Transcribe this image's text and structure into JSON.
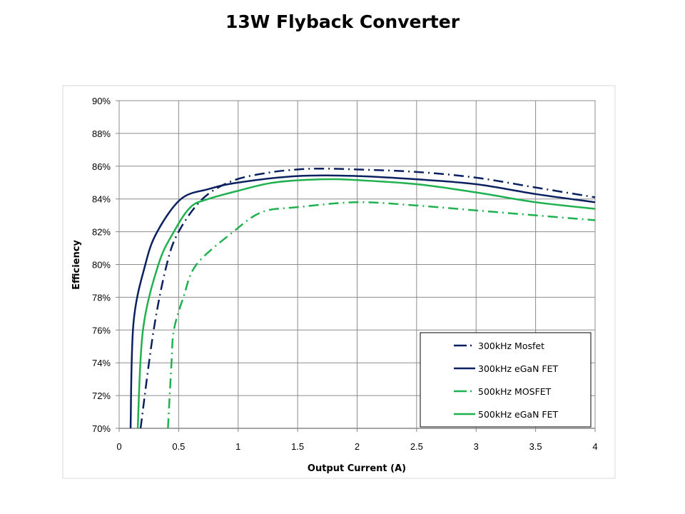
{
  "chart_data": {
    "type": "line",
    "title": "13W Flyback Converter",
    "xlabel": "Output Current (A)",
    "ylabel": "Efficiency",
    "xlim": [
      0,
      4
    ],
    "ylim": [
      70,
      90
    ],
    "xticks": [
      "0",
      "0.5",
      "1",
      "1.5",
      "2",
      "2.5",
      "3",
      "3.5",
      "4"
    ],
    "yticks": [
      "70%",
      "72%",
      "74%",
      "76%",
      "78%",
      "80%",
      "82%",
      "84%",
      "86%",
      "88%",
      "90%"
    ],
    "grid": true,
    "legend_position": "bottom-right",
    "series": [
      {
        "name": "300kHz Mosfet",
        "color": "#0b2060",
        "dash": "dash-dot",
        "x": [
          0.18,
          0.29,
          0.4,
          0.5,
          0.7,
          0.95,
          1.25,
          1.5,
          1.7,
          2.0,
          2.5,
          3.0,
          3.5,
          4.0
        ],
        "y": [
          70,
          76,
          80,
          82,
          84,
          85.1,
          85.6,
          85.8,
          85.85,
          85.8,
          85.65,
          85.3,
          84.7,
          84.1
        ]
      },
      {
        "name": "300kHz eGaN FET",
        "color": "#0b2060",
        "dash": "solid",
        "x": [
          0.096,
          0.12,
          0.22,
          0.32,
          0.52,
          0.75,
          1.0,
          1.5,
          2.0,
          2.5,
          3.0,
          3.5,
          4.0
        ],
        "y": [
          70,
          76.4,
          80,
          82,
          84,
          84.6,
          85.0,
          85.4,
          85.4,
          85.2,
          84.9,
          84.3,
          83.8
        ]
      },
      {
        "name": "500kHz MOSFET",
        "color": "#1fb14f",
        "dash": "dash-dot",
        "x": [
          0.41,
          0.44,
          0.46,
          0.54,
          0.65,
          0.96,
          1.2,
          1.5,
          2.0,
          2.5,
          3.0,
          3.5,
          4.0
        ],
        "y": [
          70,
          74,
          76,
          78,
          80,
          82,
          83.2,
          83.5,
          83.8,
          83.6,
          83.3,
          83.0,
          82.7
        ]
      },
      {
        "name": "500kHz eGaN FET",
        "color": "#1fb14f",
        "dash": "solid",
        "x": [
          0.156,
          0.2,
          0.33,
          0.46,
          0.6,
          0.75,
          1.0,
          1.3,
          1.7,
          2.0,
          2.5,
          3.0,
          3.5,
          4.0
        ],
        "y": [
          70,
          76,
          80,
          82,
          83.5,
          84,
          84.5,
          85.0,
          85.2,
          85.15,
          84.9,
          84.4,
          83.8,
          83.4
        ]
      }
    ]
  }
}
